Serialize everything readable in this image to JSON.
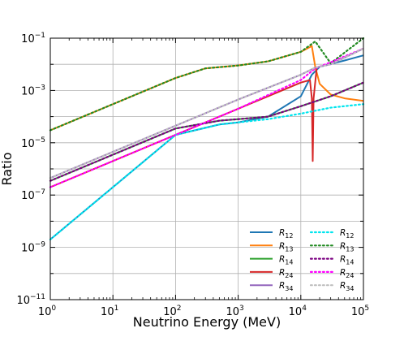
{
  "chart_data": {
    "type": "line",
    "xlabel": "Neutrino Energy (MeV)",
    "ylabel": "Ratio",
    "x_scale": "log",
    "y_scale": "log",
    "xlim": [
      1,
      100000
    ],
    "ylim": [
      1e-11,
      0.1
    ],
    "grid": true,
    "legend_placement": "lower-right",
    "x_ticks": [
      {
        "value": 1,
        "mant": "10",
        "exp": "0"
      },
      {
        "value": 10,
        "mant": "10",
        "exp": "1"
      },
      {
        "value": 100,
        "mant": "10",
        "exp": "2"
      },
      {
        "value": 1000,
        "mant": "10",
        "exp": "3"
      },
      {
        "value": 10000,
        "mant": "10",
        "exp": "4"
      },
      {
        "value": 100000,
        "mant": "10",
        "exp": "5"
      }
    ],
    "y_ticks": [
      {
        "value": 1e-11,
        "mant": "10",
        "exp": "−11"
      },
      {
        "value": 1e-09,
        "mant": "10",
        "exp": "−9"
      },
      {
        "value": 1e-07,
        "mant": "10",
        "exp": "−7"
      },
      {
        "value": 1e-05,
        "mant": "10",
        "exp": "−5"
      },
      {
        "value": 0.001,
        "mant": "10",
        "exp": "−3"
      },
      {
        "value": 0.1,
        "mant": "10",
        "exp": "−1"
      }
    ],
    "series": [
      {
        "name": "R12",
        "label_main": "R",
        "label_sub": "12",
        "style": "solid",
        "color": "#1f77b4",
        "x": [
          1,
          10,
          100,
          500,
          1000,
          3000,
          10000,
          15000,
          20000,
          50000,
          100000
        ],
        "y": [
          2e-09,
          2e-07,
          2e-05,
          5e-05,
          6e-05,
          0.0001,
          0.0006,
          0.004,
          0.008,
          0.014,
          0.022
        ]
      },
      {
        "name": "R13",
        "label_main": "R",
        "label_sub": "13",
        "style": "solid",
        "color": "#ff7f0e",
        "x": [
          1,
          10,
          100,
          300,
          1000,
          3000,
          10000,
          15000,
          17000,
          20000,
          30000,
          50000,
          100000
        ],
        "y": [
          3e-05,
          0.0003,
          0.003,
          0.007,
          0.009,
          0.013,
          0.03,
          0.05,
          0.008,
          0.0018,
          0.0007,
          0.0005,
          0.0004
        ]
      },
      {
        "name": "R14",
        "label_main": "R",
        "label_sub": "14",
        "style": "solid",
        "color": "#2ca02c",
        "x": [
          1,
          10,
          100,
          500,
          1000,
          3000,
          10000,
          30000,
          100000
        ],
        "y": [
          3.5e-07,
          3.5e-06,
          3.5e-05,
          7e-05,
          8e-05,
          0.0001,
          0.00025,
          0.0006,
          0.002
        ]
      },
      {
        "name": "R24",
        "label_main": "R",
        "label_sub": "24",
        "style": "solid",
        "color": "#d62728",
        "x": [
          1,
          10,
          100,
          1000,
          3000,
          10000,
          14000,
          15000,
          15500,
          16000,
          18000
        ],
        "y": [
          2e-07,
          2e-06,
          2e-05,
          0.0002,
          0.0006,
          0.002,
          0.0025,
          0.0005,
          2e-06,
          0.0005,
          0.008
        ]
      },
      {
        "name": "R34",
        "label_main": "R",
        "label_sub": "34",
        "style": "solid",
        "color": "#9467bd",
        "x": [
          1,
          10,
          100,
          1000,
          10000,
          17000,
          30000,
          100000
        ],
        "y": [
          4.5e-07,
          4.5e-06,
          4.5e-05,
          0.00045,
          0.004,
          0.0075,
          0.01,
          0.04
        ]
      },
      {
        "name": "R12 dotted",
        "label_main": "R",
        "label_sub": "12",
        "style": "dotted",
        "color": "#00e5ee",
        "x": [
          1,
          10,
          100,
          500,
          1000,
          3000,
          10000,
          30000,
          100000
        ],
        "y": [
          2e-09,
          2e-07,
          2e-05,
          5e-05,
          6e-05,
          8e-05,
          0.00013,
          0.00022,
          0.0003
        ]
      },
      {
        "name": "R13 dotted",
        "label_main": "R",
        "label_sub": "13",
        "style": "dotted",
        "color": "#228b22",
        "x": [
          1,
          10,
          100,
          300,
          1000,
          3000,
          10000,
          17000,
          30000,
          100000
        ],
        "y": [
          3e-05,
          0.0003,
          0.003,
          0.007,
          0.009,
          0.013,
          0.03,
          0.075,
          0.011,
          0.1
        ]
      },
      {
        "name": "R14 dotted",
        "label_main": "R",
        "label_sub": "14",
        "style": "dotted",
        "color": "#7b0082",
        "x": [
          1,
          10,
          100,
          500,
          1000,
          3000,
          10000,
          30000,
          100000
        ],
        "y": [
          3.5e-07,
          3.5e-06,
          3.5e-05,
          7e-05,
          8e-05,
          0.0001,
          0.00025,
          0.0006,
          0.002
        ]
      },
      {
        "name": "R24 dotted",
        "label_main": "R",
        "label_sub": "24",
        "style": "dotted",
        "color": "#ff00ff",
        "x": [
          1,
          10,
          100,
          1000,
          10000,
          17000,
          30000,
          100000
        ],
        "y": [
          2e-07,
          2e-06,
          2e-05,
          0.0002,
          0.0025,
          0.007,
          0.012,
          0.04
        ]
      },
      {
        "name": "R34 dotted",
        "label_main": "R",
        "label_sub": "34",
        "style": "dotted",
        "color": "#bfbfbf",
        "x": [
          1,
          10,
          100,
          1000,
          10000,
          17000,
          30000,
          100000
        ],
        "y": [
          4.5e-07,
          4.5e-06,
          4.5e-05,
          0.00045,
          0.004,
          0.0075,
          0.01,
          0.04
        ]
      }
    ]
  }
}
